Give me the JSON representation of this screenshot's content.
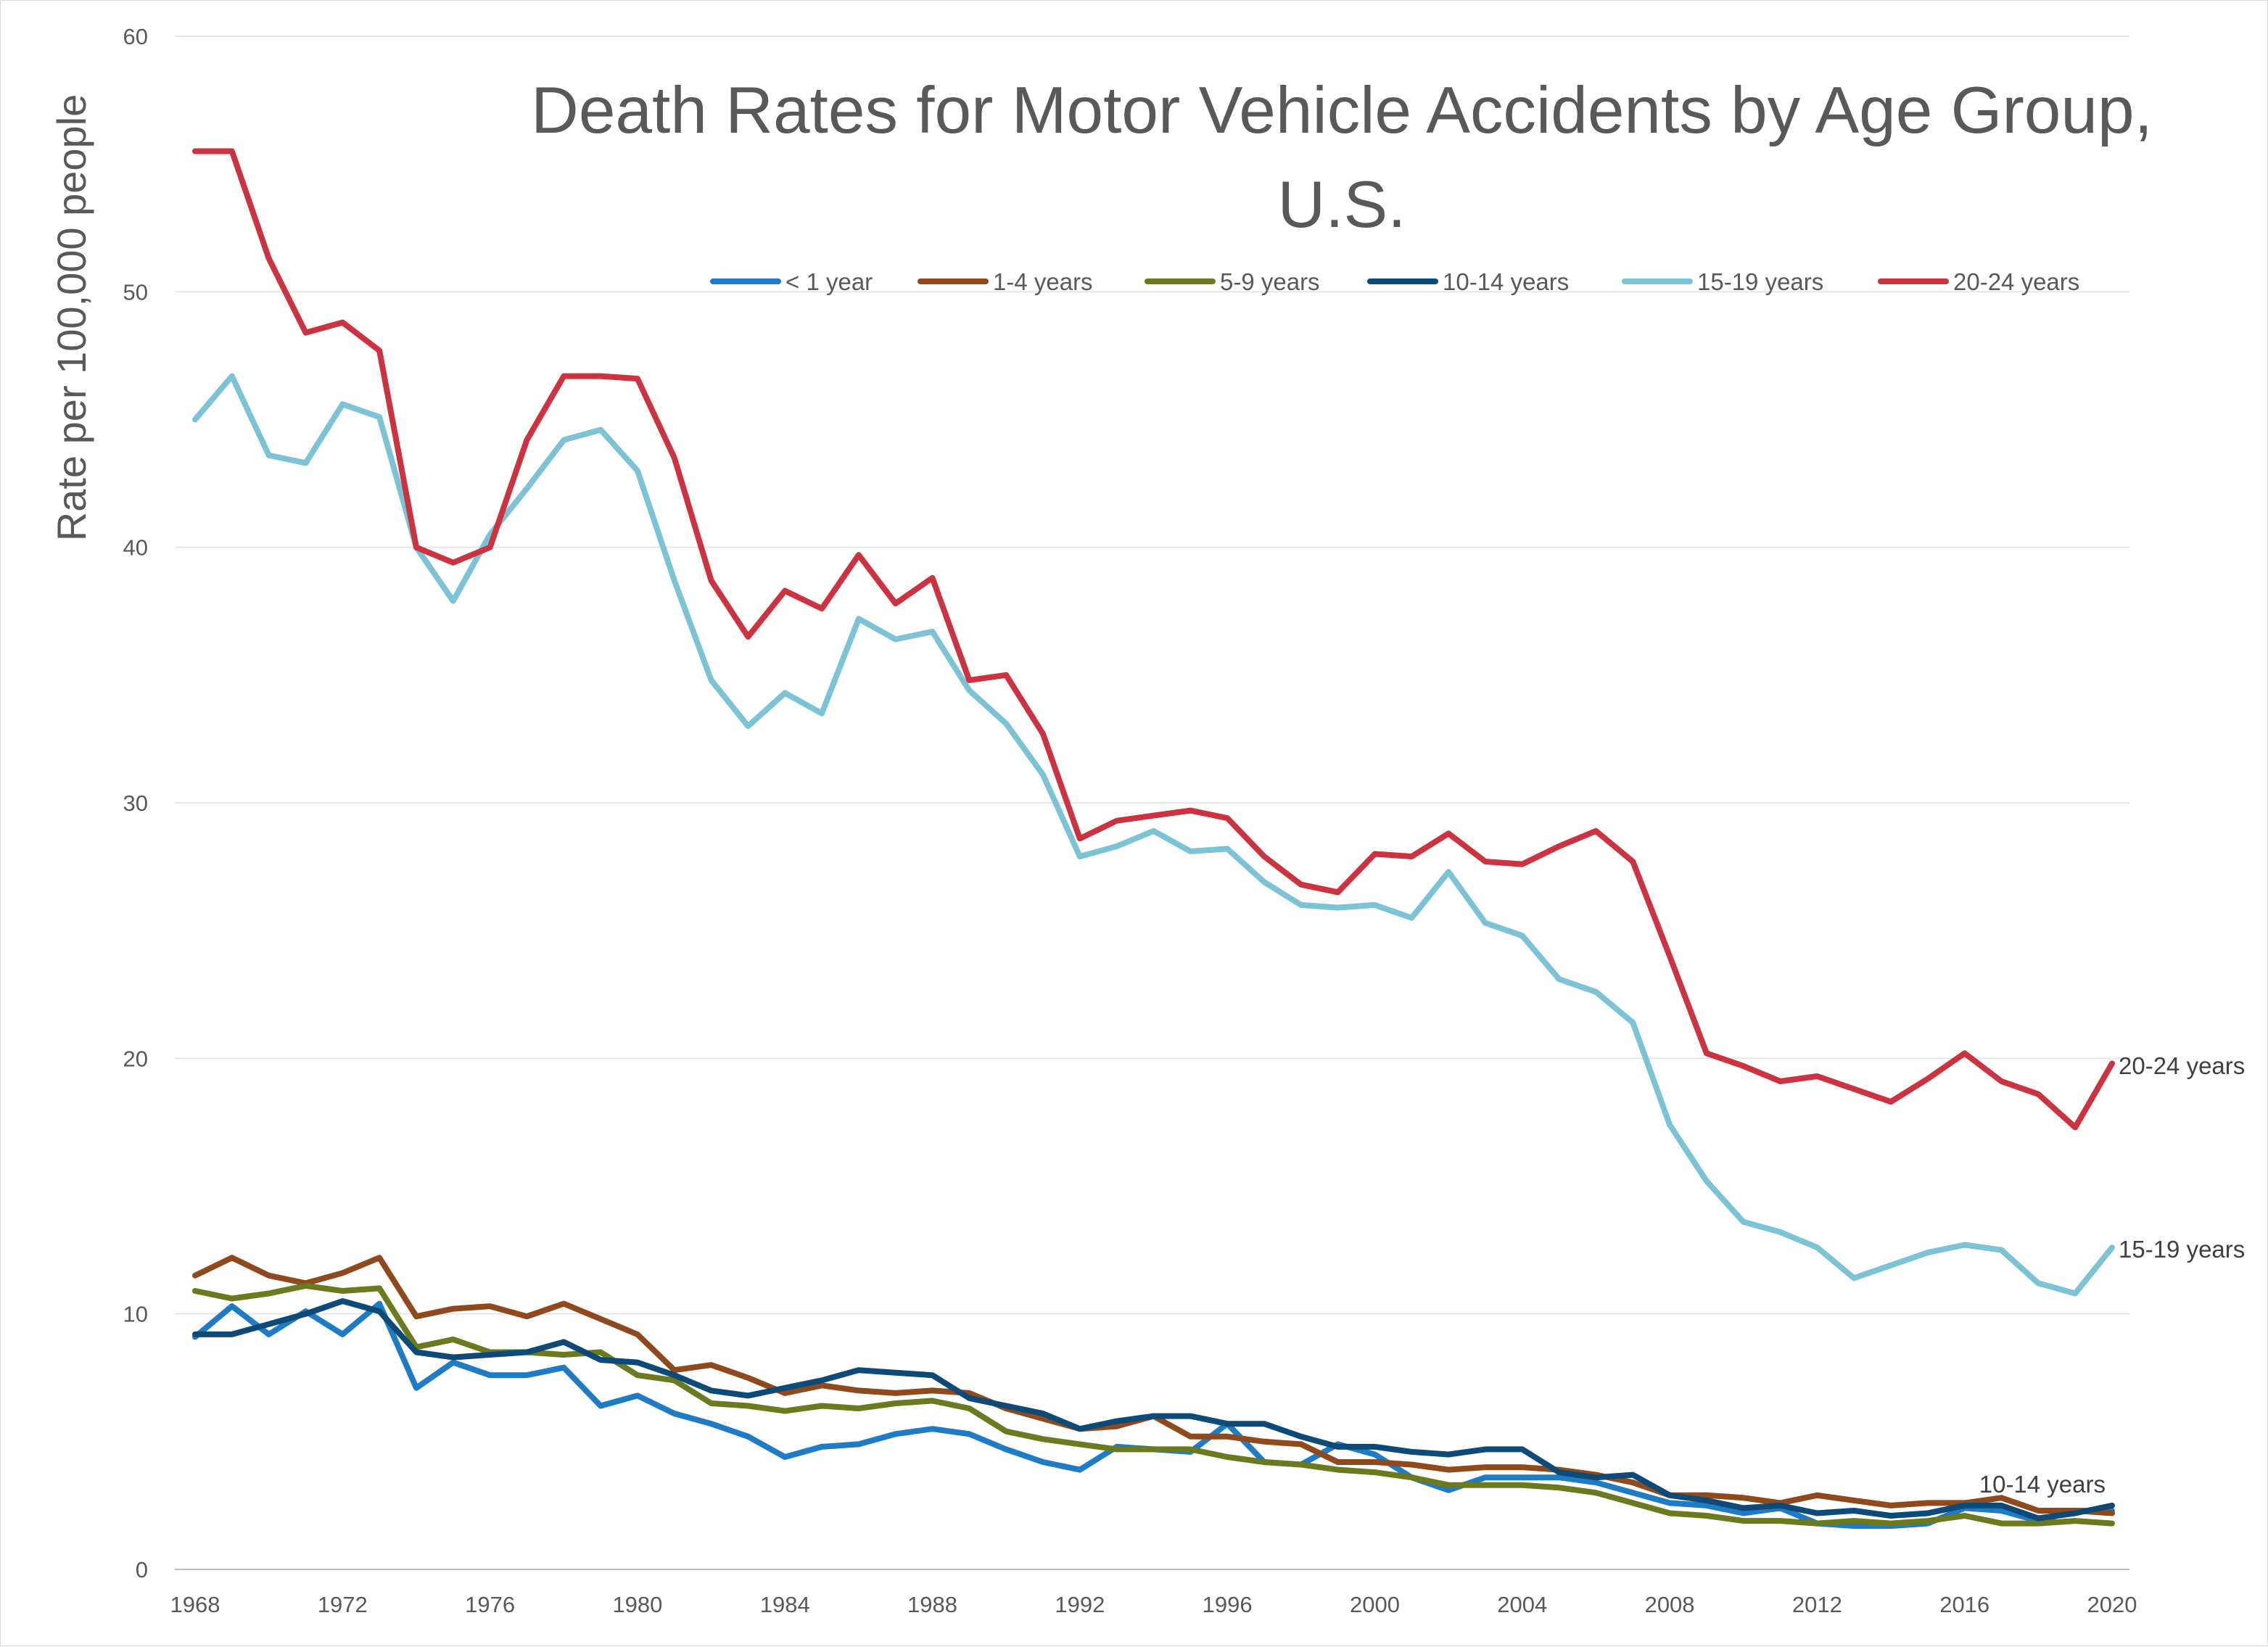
{
  "chart_data": {
    "type": "line",
    "title_lines": [
      "Death Rates for Motor Vehicle Accidents by Age Group,",
      "U.S."
    ],
    "xlabel": "",
    "ylabel": "Rate per 100,000 people",
    "ylim": [
      0,
      60
    ],
    "yticks": [
      "0",
      "10",
      "20",
      "30",
      "40",
      "50",
      "60"
    ],
    "xlim": [
      1968,
      2020
    ],
    "xticks": [
      "1968",
      "1972",
      "1976",
      "1980",
      "1984",
      "1988",
      "1992",
      "1996",
      "2000",
      "2004",
      "2008",
      "2012",
      "2016",
      "2020"
    ],
    "grid": "horizontal",
    "legend": "top",
    "x": [
      1968,
      1969,
      1970,
      1971,
      1972,
      1973,
      1974,
      1975,
      1976,
      1977,
      1978,
      1979,
      1980,
      1981,
      1982,
      1983,
      1984,
      1985,
      1986,
      1987,
      1988,
      1989,
      1990,
      1991,
      1992,
      1993,
      1994,
      1995,
      1996,
      1997,
      1998,
      1999,
      2000,
      2001,
      2002,
      2003,
      2004,
      2005,
      2006,
      2007,
      2008,
      2009,
      2010,
      2011,
      2012,
      2013,
      2014,
      2015,
      2016,
      2017,
      2018,
      2019,
      2020
    ],
    "series": [
      {
        "name": "< 1 year",
        "color": "#1f7cc4",
        "values": [
          9.1,
          10.3,
          9.2,
          10.1,
          9.2,
          10.4,
          7.1,
          8.1,
          7.6,
          7.6,
          7.9,
          6.4,
          6.8,
          6.1,
          5.7,
          5.2,
          4.4,
          4.8,
          4.9,
          5.3,
          5.5,
          5.3,
          4.7,
          4.2,
          3.9,
          4.8,
          4.7,
          4.6,
          5.7,
          4.2,
          4.1,
          4.9,
          4.5,
          3.6,
          3.1,
          3.6,
          3.6,
          3.6,
          3.4,
          3.0,
          2.6,
          2.5,
          2.2,
          2.4,
          1.8,
          1.7,
          1.7,
          1.8,
          2.4,
          2.3,
          1.9,
          2.3,
          2.3
        ]
      },
      {
        "name": "1-4 years",
        "color": "#8e4a1c",
        "values": [
          11.5,
          12.2,
          11.5,
          11.2,
          11.6,
          12.2,
          9.9,
          10.2,
          10.3,
          9.9,
          10.4,
          9.8,
          9.2,
          7.8,
          8.0,
          7.5,
          6.9,
          7.2,
          7.0,
          6.9,
          7.0,
          6.9,
          6.3,
          5.9,
          5.5,
          5.6,
          6.0,
          5.2,
          5.2,
          5.0,
          4.9,
          4.2,
          4.2,
          4.1,
          3.9,
          4.0,
          4.0,
          3.9,
          3.7,
          3.4,
          2.9,
          2.9,
          2.8,
          2.6,
          2.9,
          2.7,
          2.5,
          2.6,
          2.6,
          2.8,
          2.3,
          2.3,
          2.2
        ]
      },
      {
        "name": "5-9 years",
        "color": "#6b7a1e",
        "values": [
          10.9,
          10.6,
          10.8,
          11.1,
          10.9,
          11.0,
          8.7,
          9.0,
          8.5,
          8.5,
          8.4,
          8.5,
          7.6,
          7.4,
          6.5,
          6.4,
          6.2,
          6.4,
          6.3,
          6.5,
          6.6,
          6.3,
          5.4,
          5.1,
          4.9,
          4.7,
          4.7,
          4.7,
          4.4,
          4.2,
          4.1,
          3.9,
          3.8,
          3.6,
          3.3,
          3.3,
          3.3,
          3.2,
          3.0,
          2.6,
          2.2,
          2.1,
          1.9,
          1.9,
          1.8,
          1.9,
          1.8,
          1.9,
          2.1,
          1.8,
          1.8,
          1.9,
          1.8
        ]
      },
      {
        "name": "10-14 years",
        "color": "#0d4a78",
        "values": [
          9.2,
          9.2,
          9.6,
          10.0,
          10.5,
          10.1,
          8.5,
          8.3,
          8.4,
          8.5,
          8.9,
          8.2,
          8.1,
          7.6,
          7.0,
          6.8,
          7.1,
          7.4,
          7.8,
          7.7,
          7.6,
          6.7,
          6.4,
          6.1,
          5.5,
          5.8,
          6.0,
          6.0,
          5.7,
          5.7,
          5.2,
          4.8,
          4.8,
          4.6,
          4.5,
          4.7,
          4.7,
          3.8,
          3.6,
          3.7,
          2.9,
          2.7,
          2.4,
          2.5,
          2.2,
          2.3,
          2.1,
          2.2,
          2.5,
          2.5,
          2.0,
          2.2,
          2.5
        ]
      },
      {
        "name": "15-19 years",
        "color": "#7cc3d6",
        "values": [
          45.0,
          46.7,
          43.6,
          43.3,
          45.6,
          45.1,
          40.0,
          37.9,
          40.5,
          42.3,
          44.2,
          44.6,
          43.0,
          38.7,
          34.8,
          33.0,
          34.3,
          33.5,
          37.2,
          36.4,
          36.7,
          34.4,
          33.1,
          31.1,
          27.9,
          28.3,
          28.9,
          28.1,
          28.2,
          26.9,
          26.0,
          25.9,
          26.0,
          25.5,
          27.3,
          25.3,
          24.8,
          23.1,
          22.6,
          21.4,
          17.4,
          15.2,
          13.6,
          13.2,
          12.6,
          11.4,
          11.9,
          12.4,
          12.7,
          12.5,
          11.2,
          10.8,
          12.6
        ]
      },
      {
        "name": "20-24 years",
        "color": "#cc3340",
        "values": [
          55.5,
          55.5,
          51.3,
          48.4,
          48.8,
          47.7,
          40.0,
          39.4,
          40.0,
          44.2,
          46.7,
          46.7,
          46.6,
          43.5,
          38.7,
          36.5,
          38.3,
          37.6,
          39.7,
          37.8,
          38.8,
          34.8,
          35.0,
          32.7,
          28.6,
          29.3,
          29.5,
          29.7,
          29.4,
          27.9,
          26.8,
          26.5,
          28.0,
          27.9,
          28.8,
          27.7,
          27.6,
          28.3,
          28.9,
          27.7,
          24.0,
          20.2,
          19.7,
          19.1,
          19.3,
          18.8,
          18.3,
          19.2,
          20.2,
          19.1,
          18.6,
          17.3,
          19.8
        ]
      }
    ],
    "annotations": [
      {
        "text": "20-24 years",
        "series": "20-24 years"
      },
      {
        "text": "15-19 years",
        "series": "15-19 years"
      },
      {
        "text": "10-14 years",
        "series": "10-14 years"
      }
    ]
  }
}
